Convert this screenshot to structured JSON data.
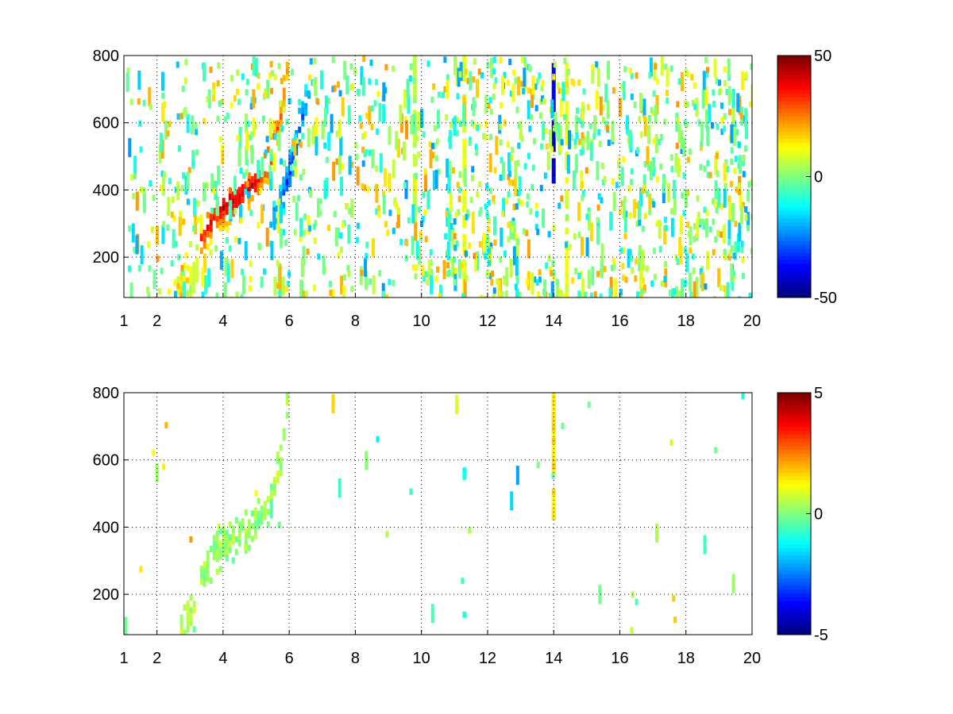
{
  "chart_data": [
    {
      "type": "heatmap",
      "title": "",
      "xlabel": "",
      "ylabel": "",
      "xlim": [
        1,
        20
      ],
      "ylim": [
        80,
        800
      ],
      "xticks": [
        1,
        2,
        4,
        6,
        8,
        10,
        12,
        14,
        16,
        18,
        20
      ],
      "xtick_labels": [
        "1",
        "2",
        "4",
        "6",
        "8",
        "10",
        "12",
        "14",
        "16",
        "18",
        "20"
      ],
      "yticks": [
        200,
        400,
        600,
        800
      ],
      "ytick_labels": [
        "200",
        "400",
        "600",
        "800"
      ],
      "grid": true,
      "grid_style": "dotted",
      "colormap": "jet",
      "clim": [
        -50,
        50
      ],
      "colorbar_ticks": [
        -50,
        0,
        50
      ],
      "colorbar_tick_labels": [
        "-50",
        "0",
        "50"
      ],
      "features": [
        {
          "kind": "band",
          "points": [
            [
              3.3,
              260,
              35
            ],
            [
              3.8,
              340,
              42
            ],
            [
              4.4,
              380,
              45
            ],
            [
              5.0,
              430,
              40
            ],
            [
              5.4,
              500,
              38
            ],
            [
              5.7,
              620,
              30
            ],
            [
              5.9,
              780,
              25
            ]
          ]
        },
        {
          "kind": "band",
          "points": [
            [
              5.4,
              300,
              -20
            ],
            [
              5.8,
              400,
              -30
            ],
            [
              6.1,
              500,
              -35
            ],
            [
              6.3,
              600,
              -30
            ],
            [
              6.6,
              700,
              -20
            ]
          ]
        },
        {
          "kind": "band",
          "points": [
            [
              2.4,
              80,
              15
            ],
            [
              2.7,
              110,
              20
            ],
            [
              3.0,
              150,
              12
            ],
            [
              3.2,
              180,
              8
            ]
          ]
        },
        {
          "kind": "vline",
          "x": 14.0,
          "y_range": [
            400,
            800
          ],
          "value": -40
        },
        {
          "kind": "vline",
          "x": 9.8,
          "y_range": [
            280,
            800
          ],
          "value": 5
        },
        {
          "kind": "vline",
          "x": 11.3,
          "y_range": [
            80,
            800
          ],
          "value": 10
        },
        {
          "kind": "vline",
          "x": 14.4,
          "y_range": [
            80,
            800
          ],
          "value": 10
        }
      ]
    },
    {
      "type": "heatmap",
      "title": "",
      "xlabel": "",
      "ylabel": "",
      "xlim": [
        1,
        20
      ],
      "ylim": [
        80,
        800
      ],
      "xticks": [
        1,
        2,
        4,
        6,
        8,
        10,
        12,
        14,
        16,
        18,
        20
      ],
      "xtick_labels": [
        "1",
        "2",
        "4",
        "6",
        "8",
        "10",
        "12",
        "14",
        "16",
        "18",
        "20"
      ],
      "yticks": [
        200,
        400,
        600,
        800
      ],
      "ytick_labels": [
        "200",
        "400",
        "600",
        "800"
      ],
      "grid": true,
      "grid_style": "dotted",
      "colormap": "jet",
      "clim": [
        -5,
        5
      ],
      "colorbar_ticks": [
        -5,
        0,
        5
      ],
      "colorbar_tick_labels": [
        "-5",
        "0",
        "5"
      ],
      "features": [
        {
          "kind": "band",
          "points": [
            [
              3.3,
              260,
              0.3
            ],
            [
              3.8,
              330,
              0.4
            ],
            [
              4.4,
              370,
              0.3
            ],
            [
              5.0,
              420,
              0.2
            ],
            [
              5.4,
              480,
              0.3
            ],
            [
              5.7,
              600,
              0.4
            ],
            [
              5.9,
              780,
              0.3
            ]
          ]
        },
        {
          "kind": "band",
          "points": [
            [
              2.6,
              85,
              0.5
            ],
            [
              2.9,
              120,
              0.6
            ],
            [
              3.1,
              160,
              0.4
            ]
          ]
        },
        {
          "kind": "vline",
          "x": 14.0,
          "y_range": [
            420,
            790
          ],
          "value": 1.5
        },
        {
          "kind": "vline",
          "x": 11.3,
          "y_range": [
            130,
            165
          ],
          "value": -1.0
        },
        {
          "kind": "vline",
          "x": 11.3,
          "y_range": [
            540,
            570
          ],
          "value": -1.0
        }
      ]
    }
  ]
}
